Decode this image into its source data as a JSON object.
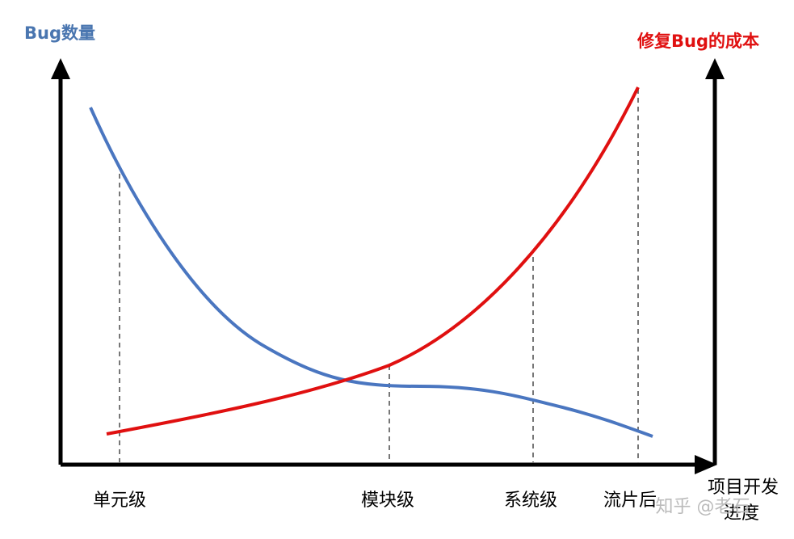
{
  "axes": {
    "left_label": "Bug数量",
    "right_label": "修复Bug的成本",
    "x_label_lines": [
      "项目开发",
      "进度"
    ]
  },
  "stages": [
    "单元级",
    "模块级",
    "系统级",
    "流片后"
  ],
  "watermark": "知乎 @老石"
}
